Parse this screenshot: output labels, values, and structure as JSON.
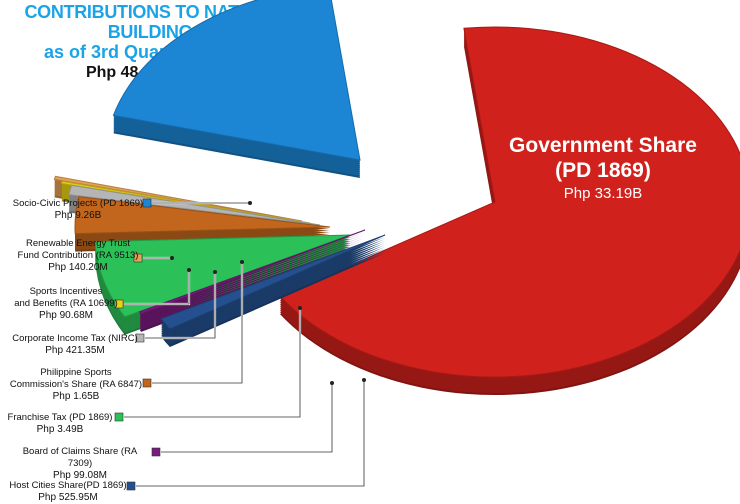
{
  "header": {
    "title_line1": "CONTRIBUTIONS TO NATION-BUILDING",
    "title_line2": "as of 3rd Quarter of 2024",
    "total": "Php 48.88 Billion"
  },
  "chart_data": {
    "type": "pie",
    "title": "CONTRIBUTIONS TO NATION-BUILDING as of 3rd Quarter of 2024",
    "subtitle": "Php 48.88 Billion",
    "slices": [
      {
        "name_line1": "Government Share",
        "name_line2": "(PD 1869)",
        "value_label": "Php 33.19B",
        "value": 33.19,
        "color": "#d0211c"
      },
      {
        "name_line1": "Host Cities Share(PD 1869)",
        "name_line2": "",
        "value_label": "Php 525.95M",
        "value": 0.52595,
        "color": "#24508f"
      },
      {
        "name_line1": "Board of Claims Share (RA 7309)",
        "name_line2": "",
        "value_label": "Php 99.08M",
        "value": 0.09908,
        "color": "#7b1a7f"
      },
      {
        "name_line1": "Franchise Tax (PD 1869)",
        "name_line2": "",
        "value_label": "Php 3.49B",
        "value": 3.49,
        "color": "#2cc058"
      },
      {
        "name_line1": "Philippine Sports",
        "name_line2": "Commission's Share (RA 6847)",
        "value_label": "Php 1.65B",
        "value": 1.65,
        "color": "#c1661c"
      },
      {
        "name_line1": "Corporate Income Tax (NIRC)",
        "name_line2": "",
        "value_label": "Php 421.35M",
        "value": 0.42135,
        "color": "#b5b5b5"
      },
      {
        "name_line1": "Sports Incentives",
        "name_line2": "and Benefits (RA 10699)",
        "value_label": "Php 90.68M",
        "value": 0.09068,
        "color": "#e8d411"
      },
      {
        "name_line1": "Renewable Energy Trust",
        "name_line2": "Fund Contribution (RA 9513)",
        "value_label": "Php 140.20M",
        "value": 0.1402,
        "color": "#e5a054"
      },
      {
        "name_line1": "Socio-Civic Projects (PD 1869)",
        "name_line2": "",
        "value_label": "Php 9.26B",
        "value": 9.26,
        "color": "#1c85d4"
      }
    ]
  }
}
